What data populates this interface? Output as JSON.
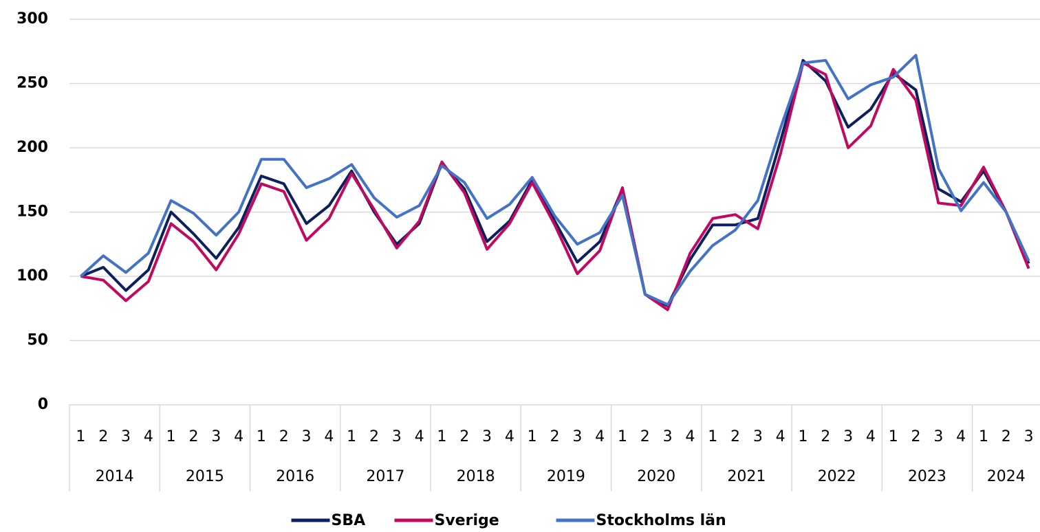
{
  "chart_data": {
    "type": "line",
    "categories": [
      "1",
      "2",
      "3",
      "4",
      "1",
      "2",
      "3",
      "4",
      "1",
      "2",
      "3",
      "4",
      "1",
      "2",
      "3",
      "4",
      "1",
      "2",
      "3",
      "4",
      "1",
      "2",
      "3",
      "4",
      "1",
      "2",
      "3",
      "4",
      "1",
      "2",
      "3",
      "4",
      "1",
      "2",
      "3",
      "4",
      "1",
      "2",
      "3",
      "4",
      "1",
      "2",
      "3"
    ],
    "year_groups": [
      "2014",
      "2015",
      "2016",
      "2017",
      "2018",
      "2019",
      "2020",
      "2021",
      "2022",
      "2023",
      "2024"
    ],
    "series": [
      {
        "name": "SBA",
        "color": "#0d1f5c",
        "values": [
          100,
          107,
          89,
          105,
          150,
          133,
          114,
          138,
          178,
          172,
          141,
          155,
          182,
          150,
          125,
          141,
          188,
          168,
          127,
          143,
          175,
          143,
          111,
          127,
          168,
          86,
          77,
          113,
          140,
          140,
          145,
          205,
          268,
          252,
          216,
          230,
          258,
          245,
          168,
          158,
          182,
          150,
          110
        ]
      },
      {
        "name": "Sverige",
        "color": "#c0095f",
        "values": [
          100,
          97,
          81,
          96,
          141,
          127,
          105,
          133,
          172,
          166,
          128,
          145,
          180,
          152,
          122,
          143,
          189,
          165,
          121,
          141,
          173,
          140,
          102,
          120,
          169,
          86,
          74,
          118,
          145,
          148,
          137,
          195,
          266,
          257,
          200,
          217,
          261,
          237,
          157,
          155,
          185,
          150,
          106
        ]
      },
      {
        "name": "Stockholms län",
        "color": "#4472c4",
        "values": [
          100,
          116,
          103,
          118,
          159,
          149,
          132,
          150,
          191,
          191,
          169,
          176,
          187,
          161,
          146,
          155,
          186,
          173,
          145,
          156,
          177,
          147,
          125,
          134,
          163,
          86,
          78,
          104,
          124,
          136,
          159,
          215,
          266,
          268,
          238,
          249,
          255,
          272,
          184,
          151,
          173,
          150,
          112
        ]
      }
    ],
    "ylim": [
      0,
      300
    ],
    "yticks": [
      0,
      50,
      100,
      150,
      200,
      250,
      300
    ],
    "grid": true,
    "legend": "bottom"
  }
}
